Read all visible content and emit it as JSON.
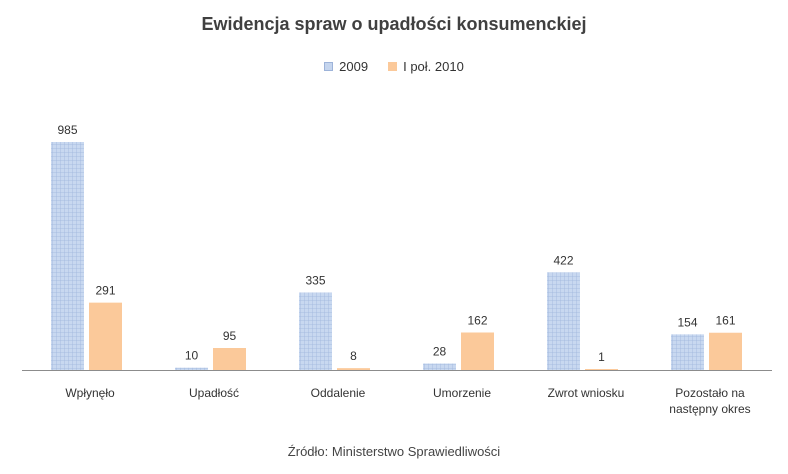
{
  "chart_data": {
    "type": "bar",
    "title": "Ewidencja spraw o upadłości konsumenckiej",
    "categories": [
      [
        "Wpłynęło"
      ],
      [
        "Upadłość"
      ],
      [
        "Oddalenie"
      ],
      [
        "Umorzenie"
      ],
      [
        "Zwrot wniosku"
      ],
      [
        "Pozostało na",
        "następny okres"
      ]
    ],
    "series": [
      {
        "name": "2009",
        "values": [
          985,
          10,
          335,
          28,
          422,
          154
        ],
        "color": "#c5d5ee",
        "pattern": "grid"
      },
      {
        "name": "I poł. 2010",
        "values": [
          291,
          95,
          8,
          162,
          1,
          161
        ],
        "color": "#fbc99a",
        "pattern": "solid"
      }
    ],
    "ylim": [
      0,
      985
    ],
    "legend_position": "top-center",
    "grid": false
  },
  "source": "Źródło: Ministerstwo Sprawiedliwości"
}
